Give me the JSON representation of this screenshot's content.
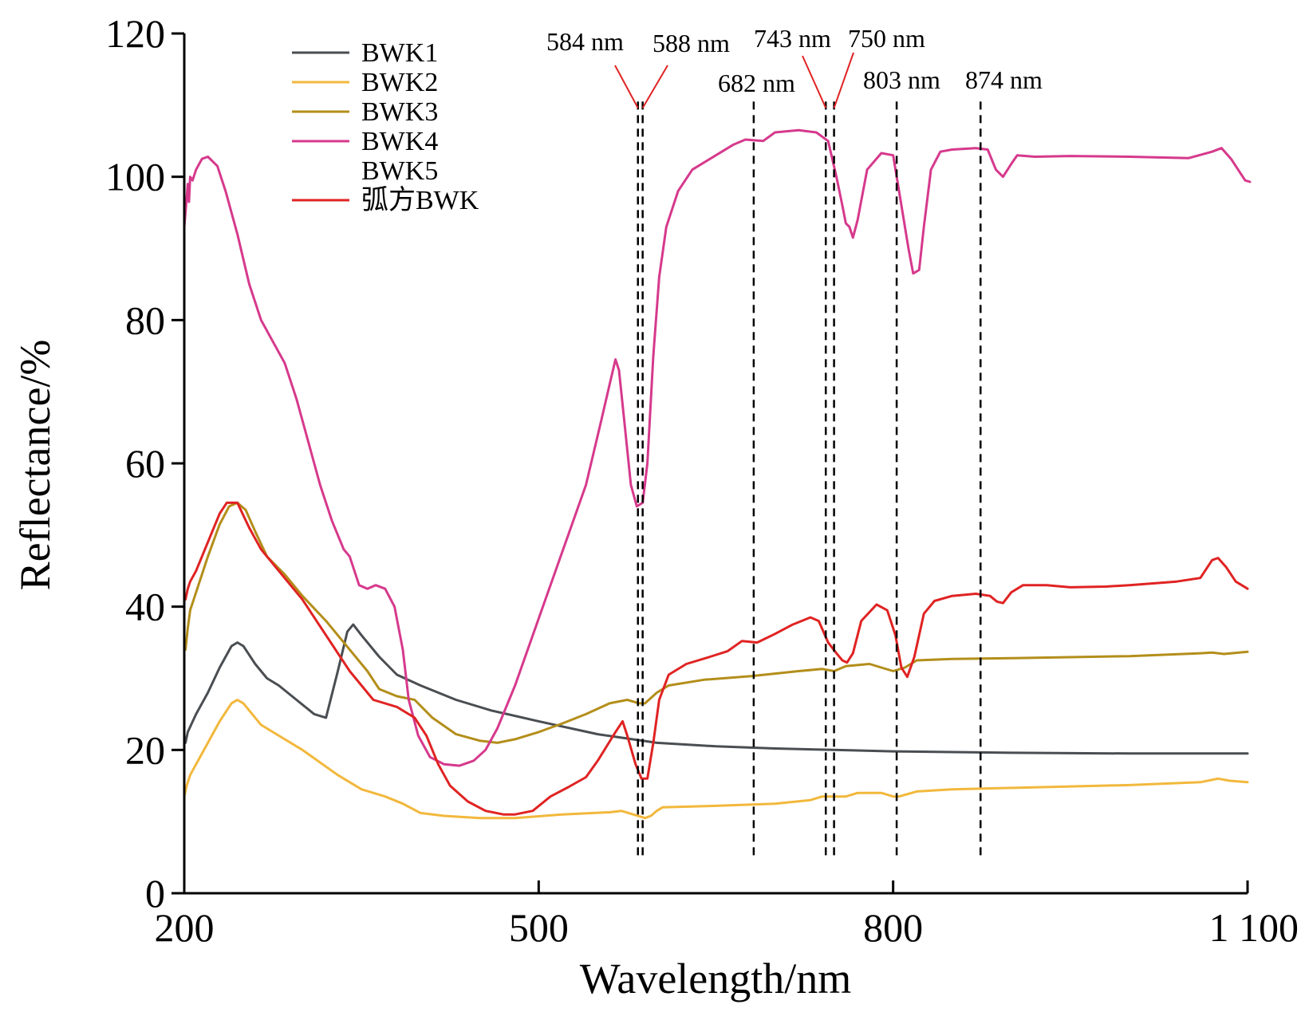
{
  "chart_data": {
    "type": "line",
    "title": "",
    "xlabel": "Wavelength/nm",
    "ylabel": "Reflectance/%",
    "xlim": [
      200,
      1100
    ],
    "ylim": [
      0,
      120
    ],
    "x_ticks": [
      {
        "value": 200,
        "label": "200"
      },
      {
        "value": 500,
        "label": "500"
      },
      {
        "value": 800,
        "label": "800"
      },
      {
        "value": 1100,
        "label": "1 100"
      }
    ],
    "y_ticks": [
      {
        "value": 0,
        "label": "0"
      },
      {
        "value": 20,
        "label": "20"
      },
      {
        "value": 40,
        "label": "40"
      },
      {
        "value": 60,
        "label": "60"
      },
      {
        "value": 80,
        "label": "80"
      },
      {
        "value": 100,
        "label": "100"
      },
      {
        "value": 120,
        "label": "120"
      }
    ],
    "grid": false,
    "legend_position": "top-left",
    "series": [
      {
        "name": "BWK1",
        "color": "#4a4e52",
        "points": [
          [
            201,
            21
          ],
          [
            203,
            22.5
          ],
          [
            210,
            25
          ],
          [
            220,
            28
          ],
          [
            230,
            31.5
          ],
          [
            240,
            34.5
          ],
          [
            245,
            35
          ],
          [
            250,
            34.5
          ],
          [
            260,
            32
          ],
          [
            270,
            30
          ],
          [
            280,
            29
          ],
          [
            295,
            27
          ],
          [
            310,
            25
          ],
          [
            320,
            24.5
          ],
          [
            330,
            31
          ],
          [
            338,
            36.5
          ],
          [
            343,
            37.5
          ],
          [
            350,
            36
          ],
          [
            365,
            33
          ],
          [
            380,
            30.5
          ],
          [
            400,
            29
          ],
          [
            430,
            27
          ],
          [
            460,
            25.5
          ],
          [
            500,
            24
          ],
          [
            550,
            22.2
          ],
          [
            600,
            21
          ],
          [
            650,
            20.5
          ],
          [
            700,
            20.2
          ],
          [
            750,
            20
          ],
          [
            800,
            19.8
          ],
          [
            900,
            19.6
          ],
          [
            1000,
            19.5
          ],
          [
            1100,
            19.5
          ]
        ]
      },
      {
        "name": "BWK2",
        "color": "#f2b83c",
        "points": [
          [
            200,
            13.5
          ],
          [
            202,
            15
          ],
          [
            205,
            16.5
          ],
          [
            210,
            18
          ],
          [
            220,
            21
          ],
          [
            230,
            24
          ],
          [
            240,
            26.5
          ],
          [
            245,
            27
          ],
          [
            250,
            26.5
          ],
          [
            255,
            25.5
          ],
          [
            265,
            23.5
          ],
          [
            280,
            22
          ],
          [
            300,
            20
          ],
          [
            330,
            16.5
          ],
          [
            350,
            14.5
          ],
          [
            370,
            13.5
          ],
          [
            385,
            12.5
          ],
          [
            400,
            11.2
          ],
          [
            420,
            10.8
          ],
          [
            450,
            10.5
          ],
          [
            480,
            10.5
          ],
          [
            520,
            11
          ],
          [
            560,
            11.3
          ],
          [
            570,
            11.5
          ],
          [
            580,
            11
          ],
          [
            590,
            10.5
          ],
          [
            595,
            10.8
          ],
          [
            600,
            11.5
          ],
          [
            605,
            12
          ],
          [
            650,
            12.2
          ],
          [
            700,
            12.5
          ],
          [
            730,
            13
          ],
          [
            740,
            13.5
          ],
          [
            760,
            13.5
          ],
          [
            770,
            14
          ],
          [
            790,
            14
          ],
          [
            800,
            13.5
          ],
          [
            805,
            13.5
          ],
          [
            820,
            14.2
          ],
          [
            850,
            14.5
          ],
          [
            900,
            14.7
          ],
          [
            950,
            14.9
          ],
          [
            1000,
            15.1
          ],
          [
            1060,
            15.5
          ],
          [
            1075,
            16
          ],
          [
            1085,
            15.7
          ],
          [
            1100,
            15.5
          ]
        ]
      },
      {
        "name": "BWK3",
        "color": "#b38e1a",
        "points": [
          [
            201,
            34
          ],
          [
            203,
            37
          ],
          [
            205,
            39.5
          ],
          [
            210,
            42
          ],
          [
            220,
            47
          ],
          [
            230,
            51.5
          ],
          [
            238,
            54
          ],
          [
            245,
            54.5
          ],
          [
            252,
            53.5
          ],
          [
            260,
            50.5
          ],
          [
            270,
            47
          ],
          [
            285,
            44.5
          ],
          [
            300,
            41.5
          ],
          [
            320,
            38
          ],
          [
            340,
            34
          ],
          [
            355,
            31
          ],
          [
            365,
            28.5
          ],
          [
            380,
            27.5
          ],
          [
            395,
            27
          ],
          [
            410,
            24.5
          ],
          [
            430,
            22.2
          ],
          [
            450,
            21.3
          ],
          [
            465,
            21
          ],
          [
            480,
            21.5
          ],
          [
            500,
            22.5
          ],
          [
            520,
            23.7
          ],
          [
            540,
            25
          ],
          [
            560,
            26.5
          ],
          [
            575,
            27
          ],
          [
            585,
            26.5
          ],
          [
            590,
            26.5
          ],
          [
            600,
            28
          ],
          [
            610,
            29
          ],
          [
            640,
            29.8
          ],
          [
            680,
            30.3
          ],
          [
            720,
            31
          ],
          [
            740,
            31.3
          ],
          [
            750,
            31
          ],
          [
            760,
            31.7
          ],
          [
            780,
            32
          ],
          [
            800,
            31
          ],
          [
            810,
            31.5
          ],
          [
            820,
            32.5
          ],
          [
            850,
            32.7
          ],
          [
            900,
            32.8
          ],
          [
            1000,
            33.1
          ],
          [
            1060,
            33.5
          ],
          [
            1070,
            33.6
          ],
          [
            1080,
            33.4
          ],
          [
            1100,
            33.7
          ]
        ]
      },
      {
        "name": "BWK4",
        "color": "#d6398c",
        "points": [
          [
            200,
            93
          ],
          [
            202,
            97
          ],
          [
            203,
            99
          ],
          [
            204,
            96.5
          ],
          [
            205,
            100
          ],
          [
            207,
            99.5
          ],
          [
            210,
            101
          ],
          [
            215,
            102.5
          ],
          [
            220,
            102.8
          ],
          [
            228,
            101.5
          ],
          [
            235,
            98
          ],
          [
            245,
            92
          ],
          [
            255,
            85
          ],
          [
            265,
            80
          ],
          [
            275,
            77
          ],
          [
            285,
            74
          ],
          [
            295,
            69
          ],
          [
            305,
            63
          ],
          [
            315,
            57
          ],
          [
            325,
            52
          ],
          [
            335,
            48
          ],
          [
            340,
            47
          ],
          [
            348,
            43
          ],
          [
            355,
            42.5
          ],
          [
            362,
            43
          ],
          [
            370,
            42.5
          ],
          [
            378,
            40
          ],
          [
            385,
            34
          ],
          [
            390,
            27
          ],
          [
            398,
            22
          ],
          [
            408,
            19
          ],
          [
            420,
            18
          ],
          [
            433,
            17.8
          ],
          [
            445,
            18.5
          ],
          [
            455,
            20
          ],
          [
            465,
            23
          ],
          [
            480,
            29
          ],
          [
            495,
            36
          ],
          [
            510,
            43
          ],
          [
            525,
            50
          ],
          [
            540,
            57
          ],
          [
            553,
            66
          ],
          [
            560,
            71
          ],
          [
            565,
            74.5
          ],
          [
            568,
            73
          ],
          [
            573,
            65
          ],
          [
            578,
            57
          ],
          [
            583,
            54
          ],
          [
            588,
            54.5
          ],
          [
            592,
            60
          ],
          [
            597,
            75
          ],
          [
            602,
            86
          ],
          [
            608,
            93
          ],
          [
            618,
            98
          ],
          [
            630,
            101
          ],
          [
            650,
            103
          ],
          [
            665,
            104.5
          ],
          [
            675,
            105.2
          ],
          [
            690,
            105
          ],
          [
            700,
            106.2
          ],
          [
            720,
            106.5
          ],
          [
            735,
            106.2
          ],
          [
            745,
            105
          ],
          [
            752,
            100
          ],
          [
            757,
            96
          ],
          [
            760,
            93.5
          ],
          [
            763,
            93
          ],
          [
            766,
            91.5
          ],
          [
            770,
            94
          ],
          [
            778,
            101
          ],
          [
            790,
            103.3
          ],
          [
            800,
            103
          ],
          [
            805,
            98
          ],
          [
            813,
            90
          ],
          [
            817,
            86.5
          ],
          [
            822,
            87
          ],
          [
            826,
            93
          ],
          [
            832,
            101
          ],
          [
            840,
            103.5
          ],
          [
            850,
            103.8
          ],
          [
            870,
            104
          ],
          [
            880,
            103.8
          ],
          [
            887,
            101
          ],
          [
            893,
            100
          ],
          [
            900,
            101.8
          ],
          [
            905,
            103
          ],
          [
            920,
            102.8
          ],
          [
            950,
            102.9
          ],
          [
            1000,
            102.8
          ],
          [
            1050,
            102.6
          ],
          [
            1070,
            103.5
          ],
          [
            1078,
            104
          ],
          [
            1086,
            102.5
          ],
          [
            1098,
            99.5
          ],
          [
            1102,
            99.3
          ]
        ]
      },
      {
        "name": "BWK5",
        "color": "#ffffff",
        "points": []
      },
      {
        "name": "弧方BWK",
        "color": "#e02323",
        "points": [
          [
            201,
            41
          ],
          [
            203,
            42.5
          ],
          [
            205,
            43.5
          ],
          [
            210,
            45
          ],
          [
            220,
            49
          ],
          [
            230,
            53
          ],
          [
            236,
            54.5
          ],
          [
            245,
            54.5
          ],
          [
            255,
            51
          ],
          [
            265,
            48
          ],
          [
            280,
            45
          ],
          [
            300,
            41
          ],
          [
            320,
            36
          ],
          [
            340,
            31
          ],
          [
            355,
            28
          ],
          [
            360,
            27
          ],
          [
            380,
            26
          ],
          [
            395,
            24.5
          ],
          [
            405,
            22
          ],
          [
            415,
            18
          ],
          [
            425,
            15
          ],
          [
            440,
            12.8
          ],
          [
            455,
            11.5
          ],
          [
            470,
            11
          ],
          [
            480,
            11
          ],
          [
            495,
            11.5
          ],
          [
            510,
            13.5
          ],
          [
            525,
            14.8
          ],
          [
            540,
            16.2
          ],
          [
            550,
            18.5
          ],
          [
            565,
            22.5
          ],
          [
            571,
            24
          ],
          [
            575,
            22
          ],
          [
            582,
            18
          ],
          [
            587,
            16
          ],
          [
            592,
            16
          ],
          [
            597,
            21
          ],
          [
            602,
            27
          ],
          [
            610,
            30.5
          ],
          [
            625,
            32
          ],
          [
            645,
            33
          ],
          [
            660,
            33.8
          ],
          [
            672,
            35.2
          ],
          [
            685,
            35
          ],
          [
            700,
            36.2
          ],
          [
            715,
            37.5
          ],
          [
            730,
            38.5
          ],
          [
            737,
            38
          ],
          [
            745,
            35
          ],
          [
            752,
            33.5
          ],
          [
            757,
            32.5
          ],
          [
            761,
            32.2
          ],
          [
            766,
            33.5
          ],
          [
            773,
            38
          ],
          [
            786,
            40.3
          ],
          [
            795,
            39.5
          ],
          [
            802,
            36
          ],
          [
            807,
            31.5
          ],
          [
            812,
            30.2
          ],
          [
            818,
            33
          ],
          [
            826,
            39
          ],
          [
            835,
            40.8
          ],
          [
            850,
            41.5
          ],
          [
            870,
            41.8
          ],
          [
            882,
            41.5
          ],
          [
            888,
            40.7
          ],
          [
            893,
            40.5
          ],
          [
            900,
            42
          ],
          [
            910,
            43
          ],
          [
            930,
            43
          ],
          [
            950,
            42.7
          ],
          [
            980,
            42.8
          ],
          [
            1000,
            43
          ],
          [
            1040,
            43.5
          ],
          [
            1060,
            44
          ],
          [
            1070,
            46.5
          ],
          [
            1075,
            46.8
          ],
          [
            1082,
            45.5
          ],
          [
            1090,
            43.5
          ],
          [
            1100,
            42.5
          ]
        ]
      }
    ],
    "markers": [
      {
        "value": 584,
        "label": "584 nm"
      },
      {
        "value": 588,
        "label": "588 nm"
      },
      {
        "value": 682,
        "label": "682 nm"
      },
      {
        "value": 743,
        "label": "743 nm"
      },
      {
        "value": 750,
        "label": "750 nm"
      },
      {
        "value": 803,
        "label": "803 nm"
      },
      {
        "value": 874,
        "label": "874 nm"
      }
    ]
  }
}
